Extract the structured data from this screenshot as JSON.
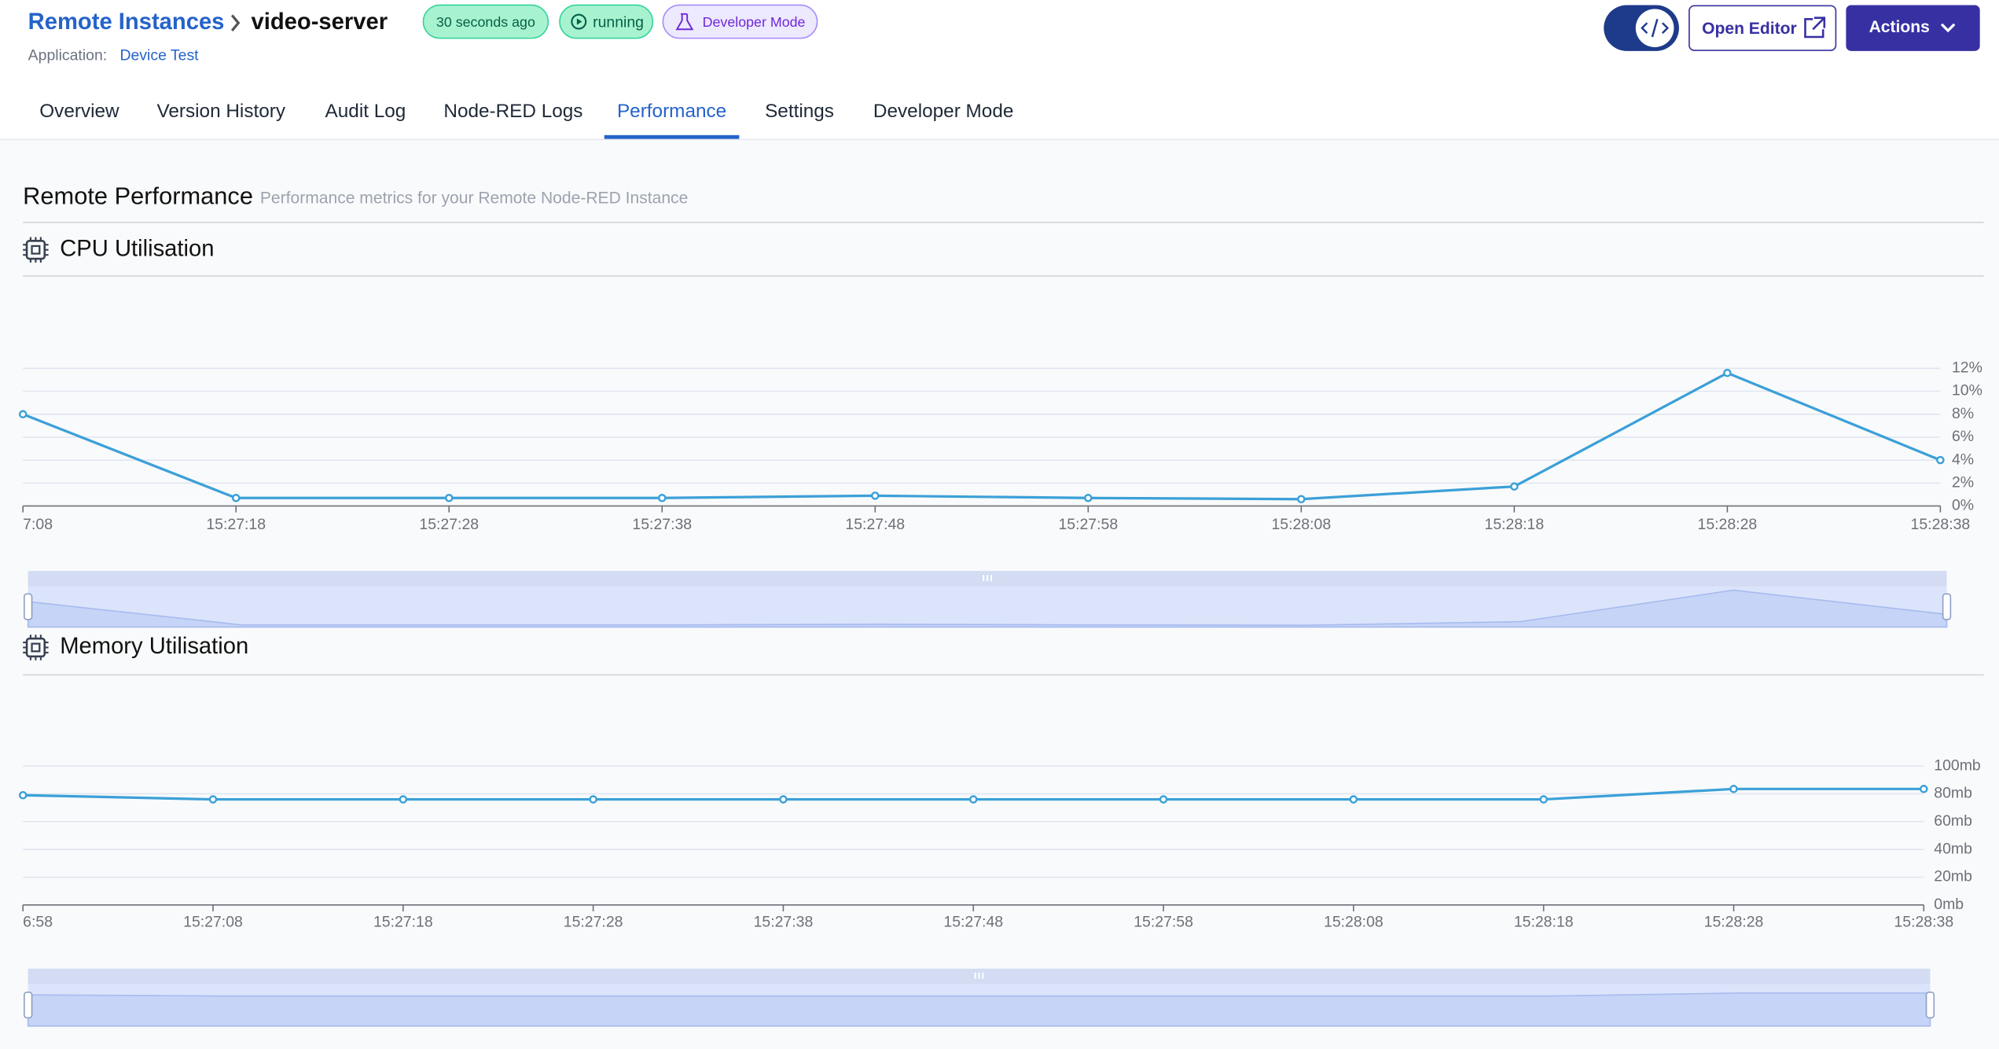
{
  "header": {
    "breadcrumb": [
      "Remote Instances",
      "video-server"
    ],
    "badges": [
      "30 seconds ago",
      "running",
      "Developer Mode"
    ],
    "application": {
      "label": "Application:",
      "value": "Device Test"
    },
    "buttons": [
      "Open Editor",
      "Actions"
    ]
  },
  "tabs": {
    "items": [
      "Overview",
      "Version History",
      "Audit Log",
      "Node-RED Logs",
      "Performance",
      "Settings",
      "Developer Mode"
    ],
    "active": 4
  },
  "section": {
    "title": "Remote Performance",
    "subtitle": "Performance metrics for your Remote Node-RED Instance"
  },
  "chart_data": [
    {
      "type": "line",
      "title": "CPU Utilisation",
      "categories": [
        "7:08",
        "15:27:18",
        "15:27:28",
        "15:27:38",
        "15:27:48",
        "15:27:58",
        "15:28:08",
        "15:28:18",
        "15:28:28",
        "15:28:38"
      ],
      "values": [
        8.0,
        0.7,
        0.7,
        0.7,
        0.9,
        0.7,
        0.6,
        1.7,
        11.6,
        4.0
      ],
      "color": "#3ba0d8",
      "ylim": [
        0,
        12
      ],
      "yticks": [
        {
          "value": 0,
          "label": "0%"
        },
        {
          "value": 2,
          "label": "2%"
        },
        {
          "value": 4,
          "label": "4%"
        },
        {
          "value": 6,
          "label": "6%"
        },
        {
          "value": 8,
          "label": "8%"
        },
        {
          "value": 10,
          "label": "10%"
        },
        {
          "value": 12,
          "label": "12%"
        }
      ],
      "grid": true
    },
    {
      "type": "line",
      "title": "Memory Utilisation",
      "categories": [
        "6:58",
        "15:27:08",
        "15:27:18",
        "15:27:28",
        "15:27:38",
        "15:27:48",
        "15:27:58",
        "15:28:08",
        "15:28:18",
        "15:28:28",
        "15:28:38"
      ],
      "values": [
        79,
        76,
        76,
        76,
        76,
        76,
        76,
        76,
        76,
        83.5,
        83.5
      ],
      "color": "#3ba0d8",
      "ylim": [
        0,
        100
      ],
      "yticks": [
        {
          "value": 0,
          "label": "0mb"
        },
        {
          "value": 20,
          "label": "20mb"
        },
        {
          "value": 40,
          "label": "40mb"
        },
        {
          "value": 60,
          "label": "60mb"
        },
        {
          "value": 80,
          "label": "80mb"
        },
        {
          "value": 100,
          "label": "100mb"
        }
      ],
      "grid": true
    }
  ]
}
